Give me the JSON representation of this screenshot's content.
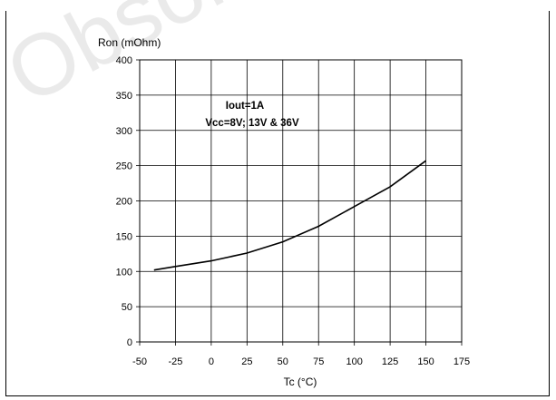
{
  "watermark": "Obsolete Product(s)",
  "chart_data": {
    "type": "line",
    "ylabel": "Ron (mOhm)",
    "xlabel": "Tc (°C)",
    "annotation": [
      "Iout=1A",
      "Vcc=8V; 13V & 36V"
    ],
    "xlim": [
      -50,
      175
    ],
    "ylim": [
      0,
      400
    ],
    "xticks": [
      -50,
      -25,
      0,
      25,
      50,
      75,
      100,
      125,
      150,
      175
    ],
    "yticks": [
      0,
      50,
      100,
      150,
      200,
      250,
      300,
      350,
      400
    ],
    "grid": true,
    "series": [
      {
        "x": [
          -40,
          -25,
          0,
          25,
          50,
          75,
          100,
          125,
          150
        ],
        "y": [
          102,
          107,
          115,
          126,
          142,
          164,
          192,
          220,
          257
        ]
      }
    ]
  }
}
